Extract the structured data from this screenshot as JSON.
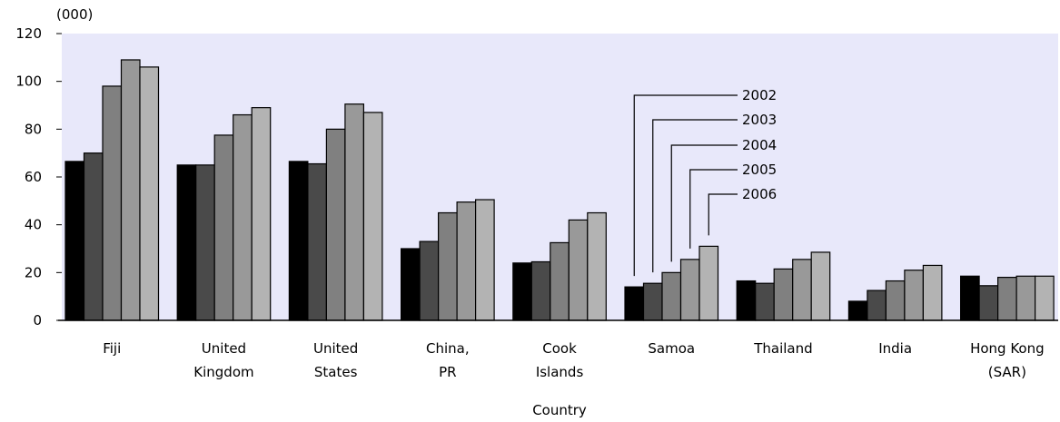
{
  "chart_data": {
    "type": "bar",
    "title": "",
    "unit_label": "(000)",
    "xlabel": "Country",
    "ylabel": "",
    "ylim": [
      0,
      120
    ],
    "yticks": [
      0,
      20,
      40,
      60,
      80,
      100,
      120
    ],
    "grid": false,
    "legend": "callout labels pointing at Samoa bars",
    "categories": [
      [
        "Fiji"
      ],
      [
        "United",
        "Kingdom"
      ],
      [
        "United",
        "States"
      ],
      [
        "China,",
        "PR"
      ],
      [
        "Cook",
        "Islands"
      ],
      [
        "Samoa"
      ],
      [
        "Thailand"
      ],
      [
        "India"
      ],
      [
        "Hong Kong",
        "(SAR)"
      ]
    ],
    "series": [
      {
        "name": "2002",
        "color": "#000000",
        "values": [
          66.5,
          65,
          66.5,
          30,
          24,
          14,
          16.5,
          8,
          18.5
        ]
      },
      {
        "name": "2003",
        "color": "#4a4a4a",
        "values": [
          70,
          65,
          65.5,
          33,
          24.5,
          15.5,
          15.5,
          12.5,
          14.5
        ]
      },
      {
        "name": "2004",
        "color": "#808080",
        "values": [
          98,
          77.5,
          80,
          45,
          32.5,
          20,
          21.5,
          16.5,
          18
        ]
      },
      {
        "name": "2005",
        "color": "#999999",
        "values": [
          109,
          86,
          90.5,
          49.5,
          42,
          25.5,
          25.5,
          21,
          18.5
        ]
      },
      {
        "name": "2006",
        "color": "#b3b3b3",
        "values": [
          106,
          89,
          87,
          50.5,
          45,
          31,
          28.5,
          23,
          18.5
        ]
      }
    ],
    "plot_background": "#e8e8fa"
  }
}
